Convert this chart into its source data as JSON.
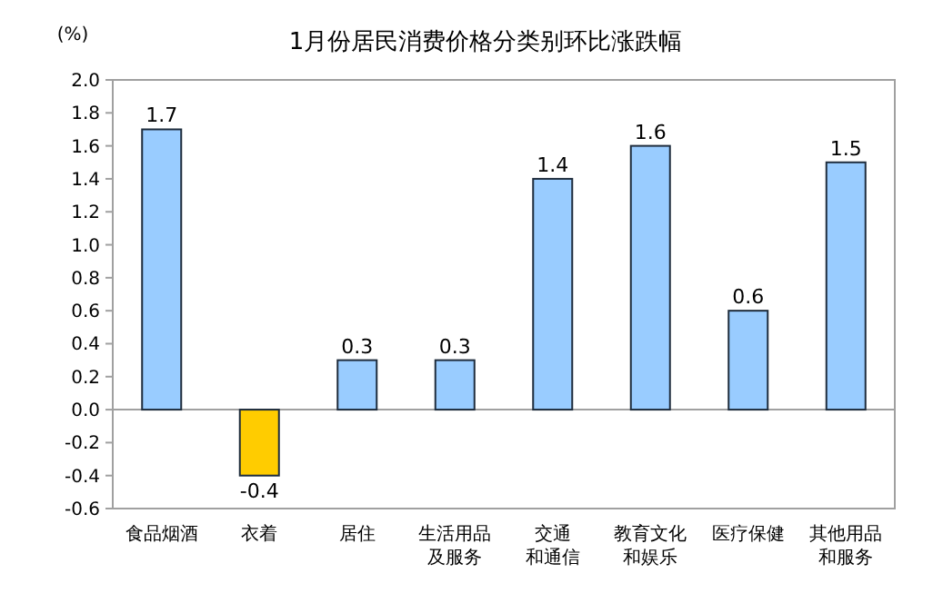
{
  "chart_data": {
    "type": "bar",
    "title": "1月份居民消费价格分类别环比涨跌幅",
    "ylabel": "(%)",
    "categories": [
      "食品烟酒",
      "衣着",
      "居住",
      "生活用品及服务",
      "交通和通信",
      "教育文化和娱乐",
      "医疗保健",
      "其他用品和服务"
    ],
    "values": [
      1.7,
      -0.4,
      0.3,
      0.3,
      1.4,
      1.6,
      0.6,
      1.5
    ],
    "colors": [
      "#99ccff",
      "#ffcc00",
      "#99ccff",
      "#99ccff",
      "#99ccff",
      "#99ccff",
      "#99ccff",
      "#99ccff"
    ],
    "ylim": [
      -0.6,
      2.0
    ],
    "yticks": [
      {
        "value": -0.6,
        "label": "-0.6"
      },
      {
        "value": -0.4,
        "label": "-0.4"
      },
      {
        "value": -0.2,
        "label": "-0.2"
      },
      {
        "value": 0,
        "label": "0.0"
      },
      {
        "value": 0.2,
        "label": "0.2"
      },
      {
        "value": 0.4,
        "label": "0.4"
      },
      {
        "value": 0.6,
        "label": "0.6"
      },
      {
        "value": 0.8,
        "label": "0.8"
      },
      {
        "value": 1,
        "label": "1.0"
      },
      {
        "value": 1.2,
        "label": "1.2"
      },
      {
        "value": 1.4,
        "label": "1.4"
      },
      {
        "value": 1.6,
        "label": "1.6"
      },
      {
        "value": 1.8,
        "label": "1.8"
      },
      {
        "value": 2,
        "label": "2.0"
      }
    ],
    "data_labels": true
  }
}
